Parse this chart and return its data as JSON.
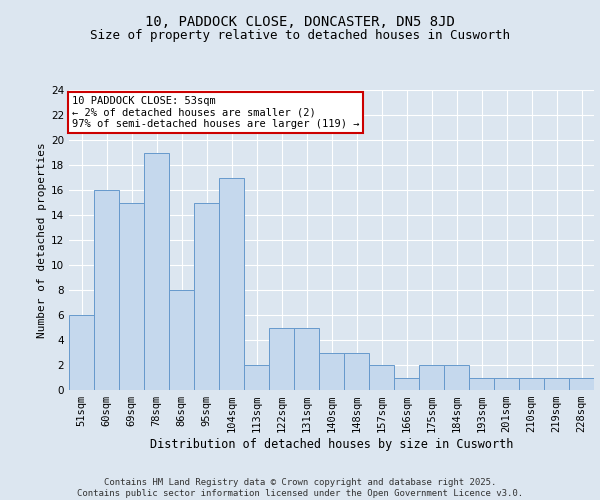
{
  "title1": "10, PADDOCK CLOSE, DONCASTER, DN5 8JD",
  "title2": "Size of property relative to detached houses in Cusworth",
  "xlabel": "Distribution of detached houses by size in Cusworth",
  "ylabel": "Number of detached properties",
  "categories": [
    "51sqm",
    "60sqm",
    "69sqm",
    "78sqm",
    "86sqm",
    "95sqm",
    "104sqm",
    "113sqm",
    "122sqm",
    "131sqm",
    "140sqm",
    "148sqm",
    "157sqm",
    "166sqm",
    "175sqm",
    "184sqm",
    "193sqm",
    "201sqm",
    "210sqm",
    "219sqm",
    "228sqm"
  ],
  "values": [
    6,
    16,
    15,
    19,
    8,
    15,
    17,
    2,
    5,
    5,
    3,
    3,
    2,
    1,
    2,
    2,
    1,
    1,
    1,
    1,
    1
  ],
  "bar_color": "#c5d8ed",
  "bar_edge_color": "#6699cc",
  "annotation_box_text": "10 PADDOCK CLOSE: 53sqm\n← 2% of detached houses are smaller (2)\n97% of semi-detached houses are larger (119) →",
  "annotation_box_color": "#ffffff",
  "annotation_box_edge_color": "#cc0000",
  "background_color": "#dce6f0",
  "fig_color": "#dce6f0",
  "grid_color": "#ffffff",
  "ylim": [
    0,
    24
  ],
  "yticks": [
    0,
    2,
    4,
    6,
    8,
    10,
    12,
    14,
    16,
    18,
    20,
    22,
    24
  ],
  "footer_text": "Contains HM Land Registry data © Crown copyright and database right 2025.\nContains public sector information licensed under the Open Government Licence v3.0.",
  "title1_fontsize": 10,
  "title2_fontsize": 9,
  "xlabel_fontsize": 8.5,
  "ylabel_fontsize": 8,
  "tick_fontsize": 7.5,
  "annotation_fontsize": 7.5,
  "footer_fontsize": 6.5
}
